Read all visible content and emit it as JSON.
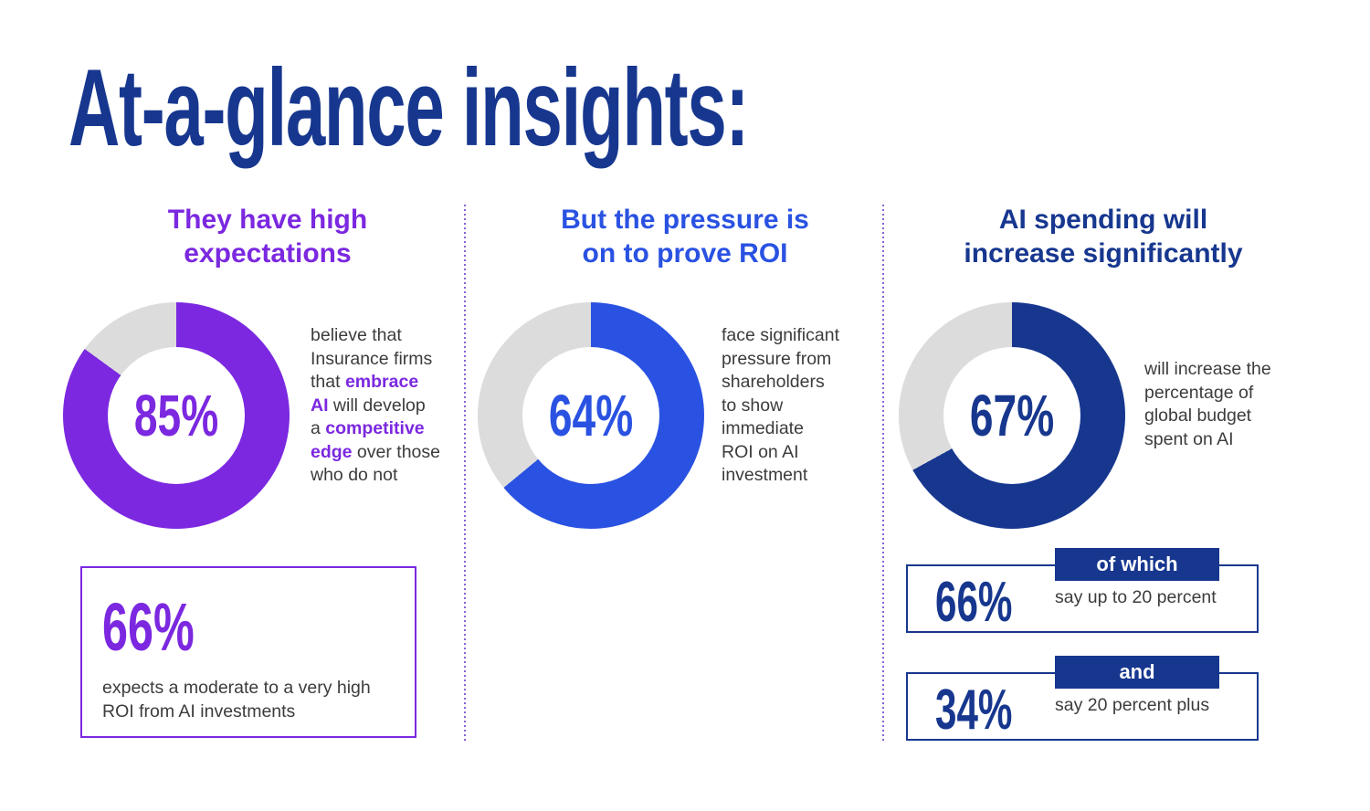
{
  "title": "At-a-glance insights:",
  "colors": {
    "navy": "#17378F",
    "blue": "#2A52E2",
    "purple": "#7B28E0",
    "donut_gray": "#DCDCDC",
    "body_text": "#3C3C3C",
    "divider": "#8A63D2"
  },
  "columns": [
    {
      "heading": "They have high expectations",
      "accent": "#7B28E0",
      "donut": {
        "label": "85%",
        "value": 85
      },
      "description": [
        {
          "t": "believe that",
          "br": true
        },
        {
          "t": "Insurance firms",
          "br": true
        },
        {
          "t": "that "
        },
        {
          "t": "embrace",
          "b": true,
          "br": true
        },
        {
          "t": "AI",
          "b": true
        },
        {
          "t": " will develop",
          "br": true
        },
        {
          "t": "a "
        },
        {
          "t": "competitive",
          "b": true,
          "br": true
        },
        {
          "t": "edge",
          "b": true
        },
        {
          "t": " over those",
          "br": true
        },
        {
          "t": "who do not"
        }
      ],
      "callout": {
        "value_label": "66%",
        "text_lines": [
          {
            "t": "expects a moderate to a very high",
            "br": true
          },
          {
            "t": "ROI from AI investments"
          }
        ]
      }
    },
    {
      "heading": "But the pressure is on to prove ROI",
      "accent": "#2A52E2",
      "donut": {
        "label": "64%",
        "value": 64
      },
      "description": [
        {
          "t": "face significant",
          "br": true
        },
        {
          "t": "pressure from",
          "br": true
        },
        {
          "t": "shareholders",
          "br": true
        },
        {
          "t": "to show",
          "br": true
        },
        {
          "t": "immediate",
          "br": true
        },
        {
          "t": "ROI on AI",
          "br": true
        },
        {
          "t": "investment"
        }
      ]
    },
    {
      "heading": "AI spending will increase significantly",
      "accent": "#17378F",
      "donut": {
        "label": "67%",
        "value": 67
      },
      "description": [
        {
          "t": "will increase the",
          "br": true
        },
        {
          "t": "percentage of",
          "br": true
        },
        {
          "t": "global budget",
          "br": true
        },
        {
          "t": "spent on AI"
        }
      ],
      "stats": [
        {
          "value_label": "66%",
          "tab_label": "of which",
          "text": "say up to 20 percent"
        },
        {
          "value_label": "34%",
          "tab_label": "and",
          "text": "say 20 percent plus"
        }
      ]
    }
  ],
  "chart_data": [
    {
      "type": "pie",
      "subtype": "donut",
      "title": "They have high expectations",
      "labels": [
        "believe AI creates competitive edge",
        "remainder"
      ],
      "values": [
        85,
        15
      ],
      "colors": [
        "#7B28E0",
        "#DCDCDC"
      ],
      "center_label": "85%",
      "start_angle_deg": 0,
      "direction": "clockwise"
    },
    {
      "type": "pie",
      "subtype": "donut",
      "title": "But the pressure is on to prove ROI",
      "labels": [
        "face shareholder pressure for immediate ROI",
        "remainder"
      ],
      "values": [
        64,
        36
      ],
      "colors": [
        "#2A52E2",
        "#DCDCDC"
      ],
      "center_label": "64%",
      "start_angle_deg": 0,
      "direction": "clockwise"
    },
    {
      "type": "pie",
      "subtype": "donut",
      "title": "AI spending will increase significantly",
      "labels": [
        "will increase percentage of global budget on AI",
        "remainder"
      ],
      "values": [
        67,
        33
      ],
      "colors": [
        "#17378F",
        "#DCDCDC"
      ],
      "center_label": "67%",
      "start_angle_deg": 0,
      "direction": "clockwise"
    }
  ]
}
